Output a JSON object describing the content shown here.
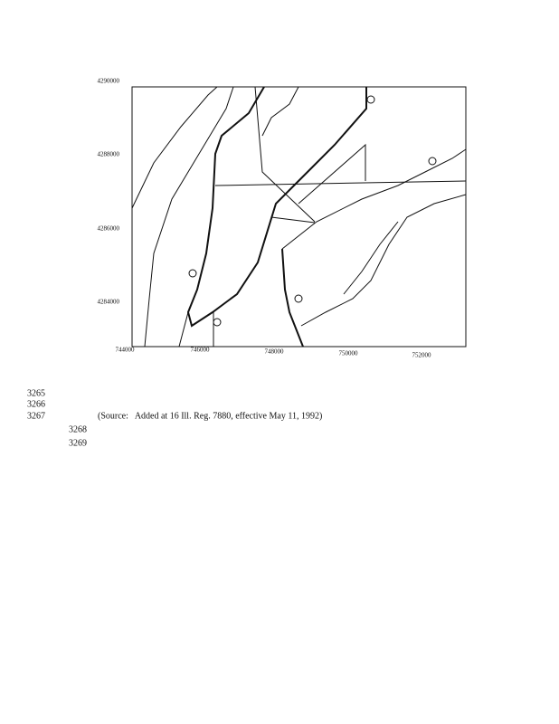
{
  "map": {
    "y_labels": [
      "4290000",
      "4288000",
      "4286000",
      "4284000"
    ],
    "x_labels": [
      "744000",
      "746000",
      "748000",
      "750000",
      "752000"
    ]
  },
  "line_numbers": [
    "3265",
    "3266",
    "3267",
    "3268",
    "3269"
  ],
  "source": "(Source:   Added at 16 Ill. Reg. 7880, effective May 11, 1992)"
}
